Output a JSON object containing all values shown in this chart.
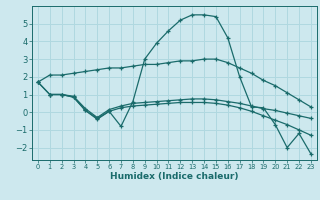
{
  "xlabel": "Humidex (Indice chaleur)",
  "bg_color": "#cde8ee",
  "grid_color": "#b0d8e0",
  "line_color": "#1a6b6b",
  "xlim": [
    -0.5,
    23.5
  ],
  "ylim": [
    -2.7,
    6.0
  ],
  "xticks": [
    0,
    1,
    2,
    3,
    4,
    5,
    6,
    7,
    8,
    9,
    10,
    11,
    12,
    13,
    14,
    15,
    16,
    17,
    18,
    19,
    20,
    21,
    22,
    23
  ],
  "yticks": [
    -2,
    -1,
    0,
    1,
    2,
    3,
    4,
    5
  ],
  "series": [
    {
      "x": [
        0,
        1,
        2,
        3,
        4,
        5,
        6,
        7,
        8,
        9,
        10,
        11,
        12,
        13,
        14,
        15,
        16,
        17,
        18,
        19,
        20,
        21,
        22,
        23
      ],
      "y": [
        1.7,
        2.1,
        2.1,
        2.2,
        2.3,
        2.4,
        2.5,
        2.5,
        2.6,
        2.7,
        2.7,
        2.8,
        2.9,
        2.9,
        3.0,
        3.0,
        2.8,
        2.5,
        2.2,
        1.8,
        1.5,
        1.1,
        0.7,
        0.3
      ]
    },
    {
      "x": [
        0,
        1,
        2,
        3,
        4,
        5,
        6,
        7,
        8,
        9,
        10,
        11,
        12,
        13,
        14,
        15,
        16,
        17,
        18,
        19,
        20,
        21,
        22,
        23
      ],
      "y": [
        1.7,
        1.0,
        1.0,
        0.9,
        0.2,
        -0.3,
        0.15,
        0.35,
        0.5,
        0.55,
        0.6,
        0.65,
        0.7,
        0.75,
        0.75,
        0.7,
        0.6,
        0.5,
        0.35,
        0.2,
        0.1,
        -0.05,
        -0.2,
        -0.35
      ]
    },
    {
      "x": [
        1,
        2,
        3,
        4,
        5,
        6,
        7,
        8,
        9,
        10,
        11,
        12,
        13,
        14,
        15,
        16,
        17,
        18,
        19,
        20,
        21,
        22,
        23
      ],
      "y": [
        1.0,
        1.0,
        0.85,
        0.1,
        -0.4,
        0.05,
        0.25,
        0.35,
        0.4,
        0.45,
        0.5,
        0.55,
        0.55,
        0.55,
        0.5,
        0.4,
        0.25,
        0.05,
        -0.2,
        -0.45,
        -0.7,
        -1.0,
        -1.3
      ]
    },
    {
      "x": [
        0,
        1,
        2,
        3,
        4,
        5,
        6,
        7,
        8,
        9,
        10,
        11,
        12,
        13,
        14,
        15,
        16,
        17,
        18,
        19,
        20,
        21,
        22,
        23
      ],
      "y": [
        1.7,
        1.0,
        1.0,
        0.85,
        0.1,
        -0.35,
        0.05,
        -0.8,
        0.6,
        3.0,
        3.9,
        4.6,
        5.2,
        5.5,
        5.5,
        5.4,
        4.2,
        2.0,
        0.3,
        0.25,
        -0.7,
        -2.0,
        -1.2,
        -2.35
      ]
    }
  ]
}
